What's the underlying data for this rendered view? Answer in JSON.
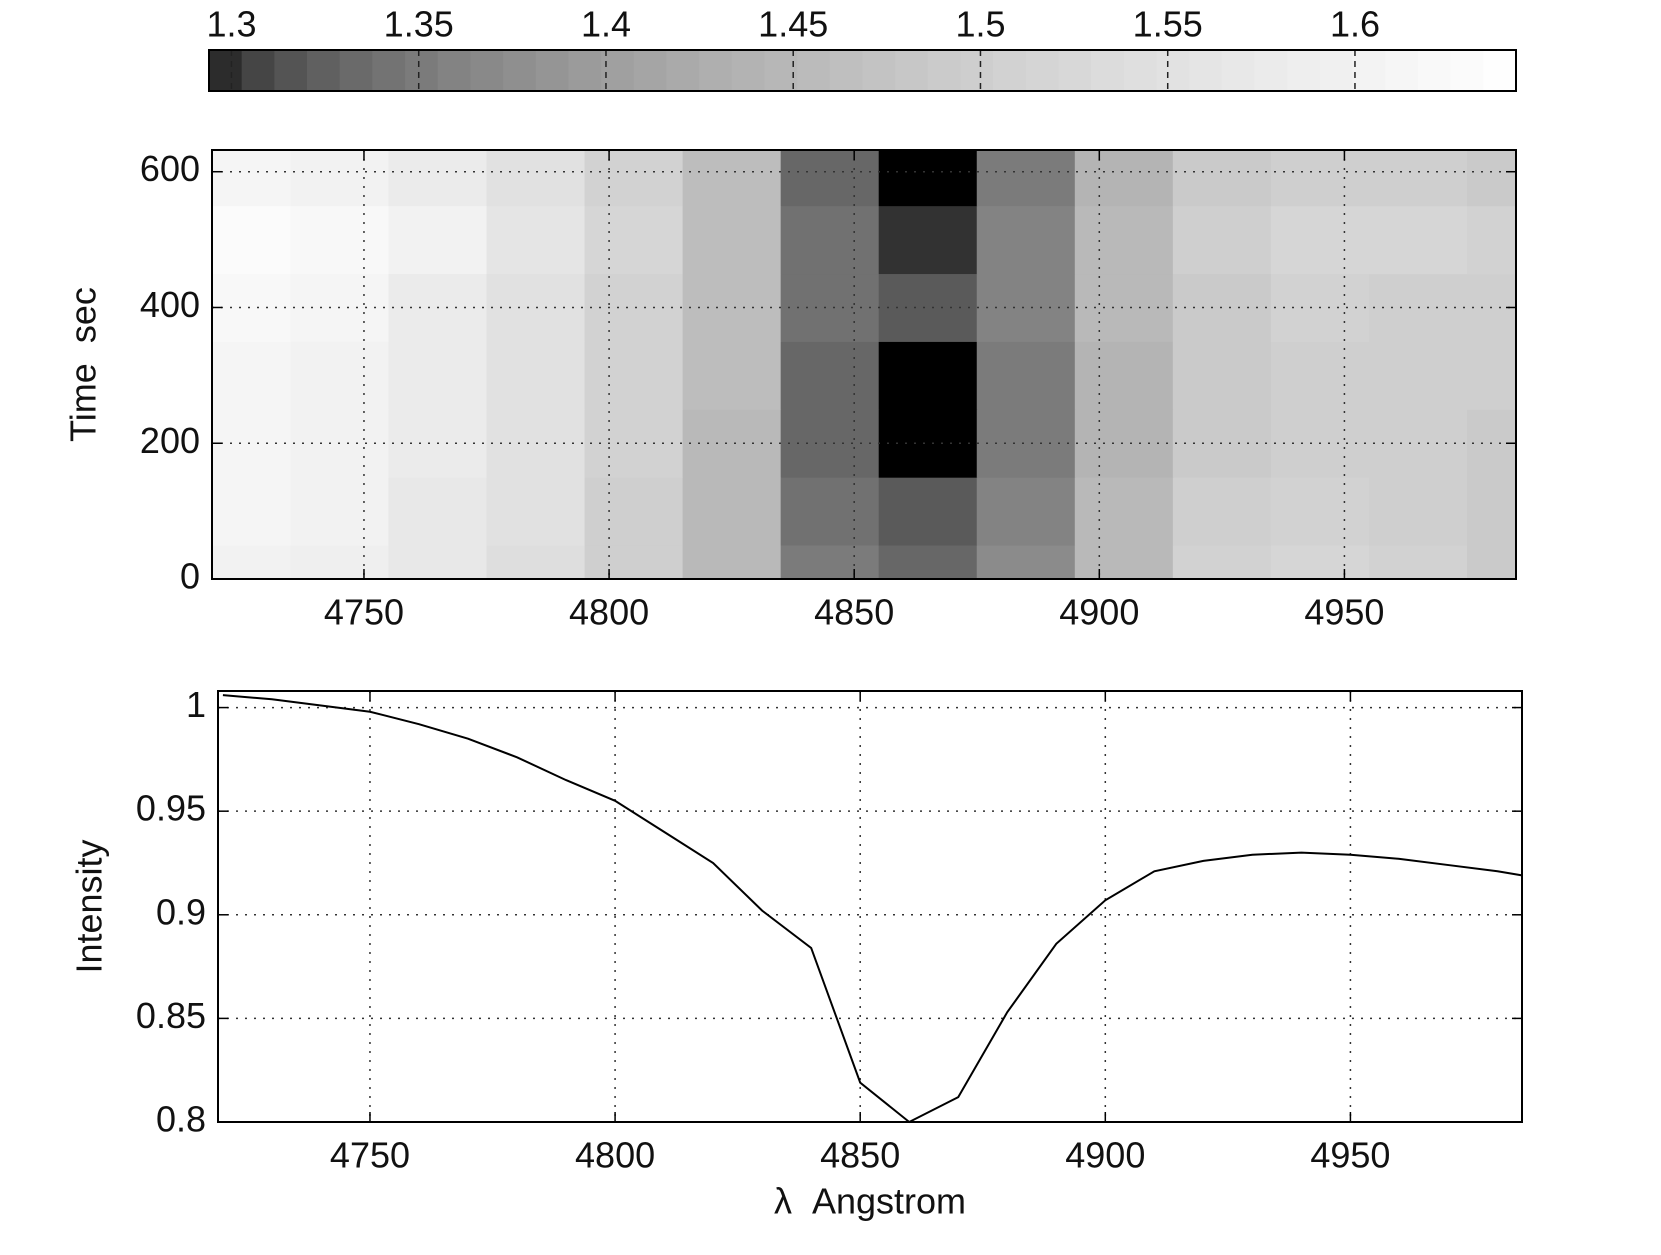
{
  "chart_data": [
    {
      "type": "contour",
      "x": [
        4725,
        4745,
        4765,
        4785,
        4805,
        4825,
        4845,
        4865,
        4885,
        4905,
        4925,
        4945,
        4965,
        4985
      ],
      "y": [
        0,
        100,
        200,
        300,
        400,
        500,
        600
      ],
      "z": [
        [
          1.6,
          1.59,
          1.57,
          1.54,
          1.5,
          1.45,
          1.35,
          1.33,
          1.37,
          1.45,
          1.51,
          1.52,
          1.51,
          1.49
        ],
        [
          1.61,
          1.6,
          1.57,
          1.55,
          1.5,
          1.45,
          1.34,
          1.32,
          1.36,
          1.45,
          1.5,
          1.51,
          1.5,
          1.49
        ],
        [
          1.61,
          1.6,
          1.58,
          1.55,
          1.51,
          1.45,
          1.33,
          1.29,
          1.35,
          1.44,
          1.49,
          1.5,
          1.5,
          1.49
        ],
        [
          1.61,
          1.6,
          1.58,
          1.55,
          1.51,
          1.46,
          1.33,
          1.29,
          1.35,
          1.44,
          1.49,
          1.5,
          1.5,
          1.5
        ],
        [
          1.62,
          1.61,
          1.58,
          1.55,
          1.51,
          1.46,
          1.34,
          1.32,
          1.36,
          1.45,
          1.49,
          1.51,
          1.5,
          1.5
        ],
        [
          1.63,
          1.62,
          1.6,
          1.56,
          1.52,
          1.46,
          1.34,
          1.3,
          1.36,
          1.45,
          1.5,
          1.52,
          1.52,
          1.51
        ],
        [
          1.61,
          1.6,
          1.58,
          1.55,
          1.51,
          1.46,
          1.33,
          1.29,
          1.35,
          1.44,
          1.49,
          1.5,
          1.5,
          1.49
        ]
      ],
      "xlim": [
        4719,
        4985
      ],
      "ylim": [
        0,
        632
      ],
      "xticks": [
        4750,
        4800,
        4850,
        4900,
        4950
      ],
      "yticks": [
        0,
        200,
        400,
        600
      ],
      "ylabel": "Time  sec",
      "grid": true,
      "colormap": "gray",
      "clim": [
        1.294,
        1.643
      ],
      "cticks": [
        1.3,
        1.35,
        1.4,
        1.45,
        1.5,
        1.55,
        1.6
      ]
    },
    {
      "type": "line",
      "x": [
        4720,
        4730,
        4740,
        4750,
        4760,
        4770,
        4780,
        4790,
        4800,
        4810,
        4820,
        4830,
        4840,
        4850,
        4860,
        4870,
        4880,
        4890,
        4900,
        4910,
        4920,
        4930,
        4940,
        4950,
        4960,
        4970,
        4980,
        4985
      ],
      "values": [
        1.006,
        1.004,
        1.001,
        0.998,
        0.992,
        0.985,
        0.976,
        0.965,
        0.955,
        0.94,
        0.925,
        0.902,
        0.884,
        0.819,
        0.8,
        0.812,
        0.853,
        0.886,
        0.907,
        0.921,
        0.926,
        0.929,
        0.93,
        0.929,
        0.927,
        0.924,
        0.921,
        0.919
      ],
      "color": "#000000",
      "xlim": [
        4719,
        4985
      ],
      "ylim": [
        0.8,
        1.008
      ],
      "xticks": [
        4750,
        4800,
        4850,
        4900,
        4950
      ],
      "yticks": [
        0.8,
        0.85,
        0.9,
        0.95,
        1
      ],
      "xlabel": "λ  Angstrom",
      "ylabel": "Intensity",
      "grid": true
    }
  ]
}
